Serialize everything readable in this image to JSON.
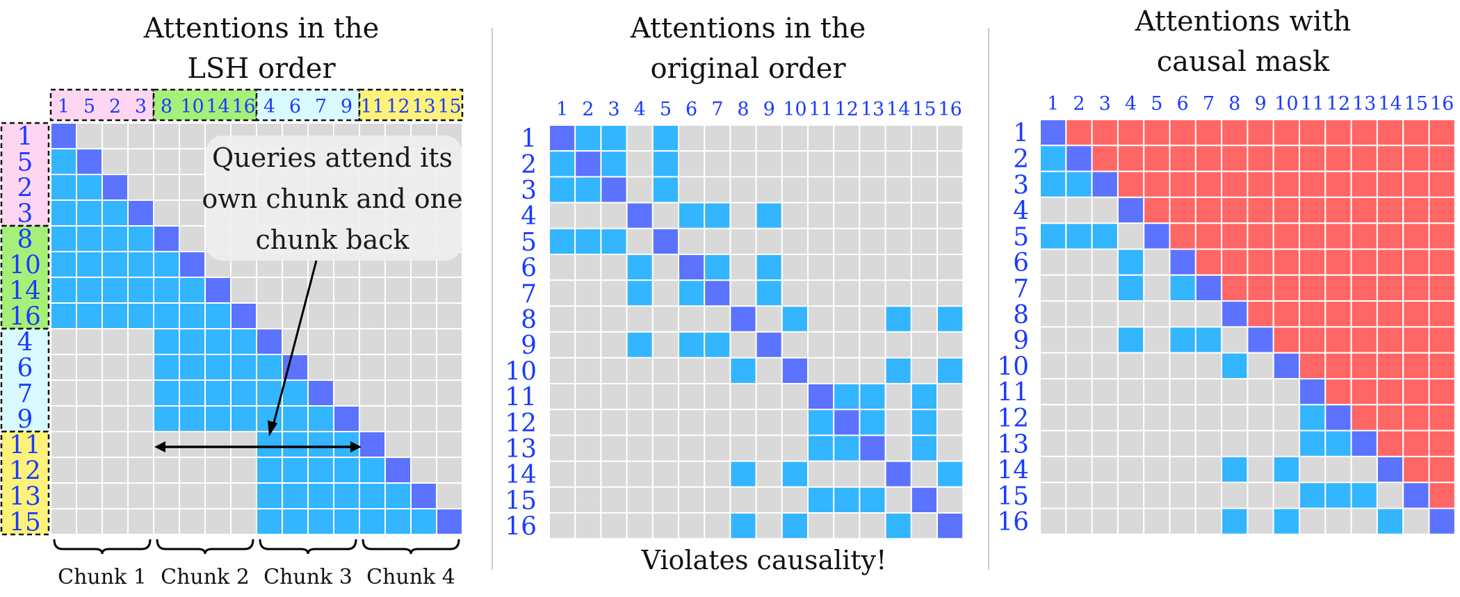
{
  "colors": {
    "empty": "#d9d9d9",
    "attend": "#33b5ff",
    "self": "#5b73ff",
    "masked": "#ff6666",
    "grid_line": "#ffffff",
    "index_text": "#1a3bff",
    "divider": "#cccccc",
    "bucket_pink": "#ffd6f2",
    "bucket_green": "#a6f07a",
    "bucket_cyan": "#d9fbff",
    "bucket_yellow": "#fff27a",
    "note_box": "#efefef"
  },
  "panels": {
    "lsh": {
      "title_lines": [
        "Attentions in the",
        "LSH order"
      ],
      "order": [
        1,
        5,
        2,
        3,
        8,
        10,
        14,
        16,
        4,
        6,
        7,
        9,
        11,
        12,
        13,
        15
      ],
      "bucket_colors": [
        "bucket_pink",
        "bucket_green",
        "bucket_cyan",
        "bucket_yellow"
      ],
      "note_lines": [
        "Queries attend its",
        "own chunk and one",
        "chunk back"
      ],
      "chunk_labels": [
        "Chunk 1",
        "Chunk 2",
        "Chunk 3",
        "Chunk 4"
      ]
    },
    "original": {
      "title_lines": [
        "Attentions in the",
        "original order"
      ],
      "caption": "Violates causality!"
    },
    "causal": {
      "title_lines": [
        "Attentions with",
        "causal mask"
      ]
    }
  }
}
